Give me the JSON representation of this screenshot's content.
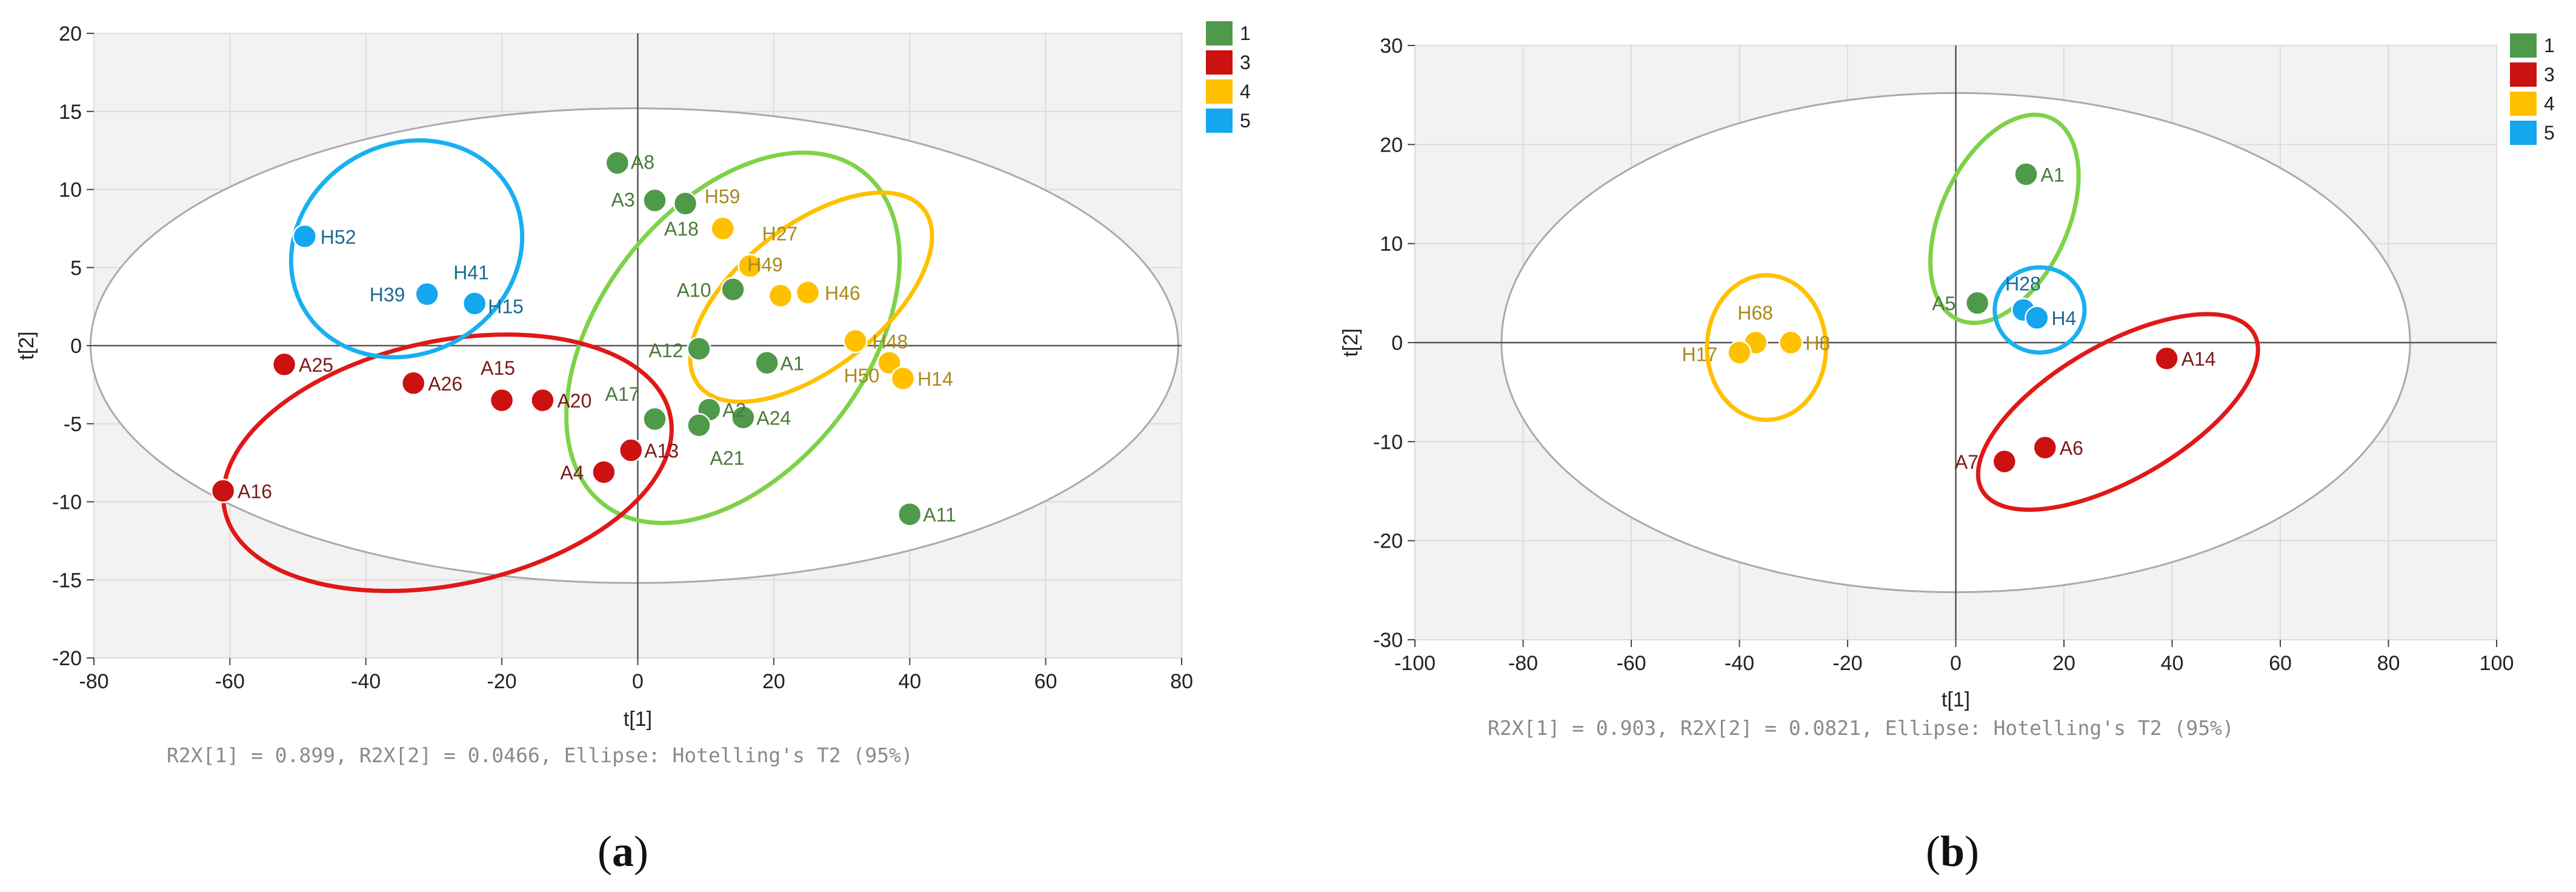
{
  "colors": {
    "g1_fill": "#4f9a4a",
    "g1_text": "#4a7a3a",
    "g1_ellipse": "#7ed24a",
    "g3_fill": "#cc1111",
    "g3_text": "#7a1a1a",
    "g3_ellipse": "#e01818",
    "g4_fill": "#ffc000",
    "g4_text": "#a88a1a",
    "g4_ellipse": "#ffc000",
    "g5_fill": "#14a6ee",
    "g5_text": "#1a6a90",
    "g5_ellipse": "#19b0f0",
    "plot_bg": "#f2f2f2",
    "grid": "#dcdcdc",
    "t2_ellipse": "#aaaaaa"
  },
  "chart_data": [
    {
      "type": "scatter",
      "panel_label": "a",
      "xlabel": "t[1]",
      "ylabel": "t[2]",
      "xlim": [
        -80,
        80
      ],
      "ylim": [
        -20,
        20
      ],
      "x_ticks": [
        -80,
        -60,
        -40,
        -20,
        0,
        20,
        40,
        60,
        80
      ],
      "y_ticks": [
        -20,
        -15,
        -10,
        -5,
        0,
        5,
        10,
        15,
        20
      ],
      "footer": "R2X[1] = 0.899, R2X[2] = 0.0466, Ellipse: Hotelling's T2 (95%)",
      "grid": true,
      "legend": {
        "position": "right",
        "entries": [
          "1",
          "3",
          "4",
          "5"
        ]
      },
      "hotelling_ellipse": {
        "center": [
          -0.5,
          0
        ],
        "rx": 80,
        "ry": 15.2
      },
      "group_ellipses": [
        {
          "group": "1",
          "center": [
            14,
            0.5
          ],
          "rx": 31,
          "ry": 8.5,
          "angle_deg": -52
        },
        {
          "group": "3",
          "center": [
            -28,
            -7.5
          ],
          "rx": 33.5,
          "ry": 7.8,
          "angle_deg": -12
        },
        {
          "group": "4",
          "center": [
            25.5,
            3.1
          ],
          "rx": 21,
          "ry": 4.6,
          "angle_deg": -38
        },
        {
          "group": "5",
          "center": [
            -34,
            6.2
          ],
          "rx": 17.5,
          "ry": 6.7,
          "angle_deg": -30
        }
      ],
      "series": [
        {
          "name": "1",
          "points": [
            {
              "label": "A8",
              "x": -3,
              "y": 11.7
            },
            {
              "label": "A3",
              "x": 2.5,
              "y": 9.3
            },
            {
              "label": "A18",
              "x": 7,
              "y": 9.1
            },
            {
              "label": "A10",
              "x": 14,
              "y": 3.6
            },
            {
              "label": "A12",
              "x": 9,
              "y": -0.2
            },
            {
              "label": "A1",
              "x": 19,
              "y": -1.1
            },
            {
              "label": "A17",
              "x": 2.5,
              "y": -4.7
            },
            {
              "label": "A2",
              "x": 10.5,
              "y": -4.1
            },
            {
              "label": "A24",
              "x": 15.5,
              "y": -4.6
            },
            {
              "label": "A21",
              "x": 9,
              "y": -5.1
            },
            {
              "label": "A11",
              "x": 40,
              "y": -10.8
            }
          ]
        },
        {
          "name": "3",
          "points": [
            {
              "label": "A25",
              "x": -52,
              "y": -1.2
            },
            {
              "label": "A26",
              "x": -33,
              "y": -2.4
            },
            {
              "label": "A15",
              "x": -20,
              "y": -3.5
            },
            {
              "label": "A20",
              "x": -14,
              "y": -3.5
            },
            {
              "label": "A13",
              "x": -1,
              "y": -6.7
            },
            {
              "label": "A4",
              "x": -5,
              "y": -8.1
            },
            {
              "label": "A16",
              "x": -61,
              "y": -9.3
            }
          ]
        },
        {
          "name": "4",
          "points": [
            {
              "label": "H59",
              "x": 12.5,
              "y": 7.5
            },
            {
              "label": "H27",
              "x": 16.5,
              "y": 5.1
            },
            {
              "label": "H49",
              "x": 21,
              "y": 3.2
            },
            {
              "label": "H46",
              "x": 25,
              "y": 3.4
            },
            {
              "label": "H48",
              "x": 32,
              "y": 0.3
            },
            {
              "label": "H50",
              "x": 37,
              "y": -1.1
            },
            {
              "label": "H14",
              "x": 39,
              "y": -2.1
            }
          ]
        },
        {
          "name": "5",
          "points": [
            {
              "label": "H52",
              "x": -49,
              "y": 7.0
            },
            {
              "label": "H39",
              "x": -31,
              "y": 3.3
            },
            {
              "label": "H41",
              "x": -24,
              "y": 2.7
            },
            {
              "label": "H15",
              "x": -24,
              "y": 2.7
            }
          ]
        }
      ]
    },
    {
      "type": "scatter",
      "panel_label": "b",
      "xlabel": "t[1]",
      "ylabel": "t[2]",
      "xlim": [
        -100,
        100
      ],
      "ylim": [
        -30,
        30
      ],
      "x_ticks": [
        -100,
        -80,
        -60,
        -40,
        -20,
        0,
        20,
        40,
        60,
        80,
        100
      ],
      "y_ticks": [
        -30,
        -20,
        -10,
        0,
        10,
        20,
        30
      ],
      "footer": "R2X[1] = 0.903, R2X[2] = 0.0821, Ellipse: Hotelling's T2 (95%)",
      "grid": true,
      "legend": {
        "position": "right",
        "entries": [
          "1",
          "3",
          "4",
          "5"
        ]
      },
      "hotelling_ellipse": {
        "center": [
          0,
          0
        ],
        "rx": 84,
        "ry": 25.2
      },
      "group_ellipses": [
        {
          "group": "1",
          "center": [
            9,
            12.5
          ],
          "rx": 20.5,
          "ry": 6.4,
          "angle_deg": -65
        },
        {
          "group": "3",
          "center": [
            30,
            -7
          ],
          "rx": 29,
          "ry": 6.8,
          "angle_deg": -30
        },
        {
          "group": "4",
          "center": [
            -35,
            -0.5
          ],
          "rx": 11,
          "ry": 7.3,
          "angle_deg": 0
        },
        {
          "group": "5",
          "center": [
            15.5,
            3.3
          ],
          "rx": 8.3,
          "ry": 4.3,
          "angle_deg": 0
        }
      ],
      "series": [
        {
          "name": "1",
          "points": [
            {
              "label": "A1",
              "x": 13,
              "y": 17
            },
            {
              "label": "A5",
              "x": 4,
              "y": 4
            }
          ]
        },
        {
          "name": "3",
          "points": [
            {
              "label": "A14",
              "x": 39,
              "y": -1.6
            },
            {
              "label": "A6",
              "x": 16.5,
              "y": -10.6
            },
            {
              "label": "A7",
              "x": 9,
              "y": -12
            }
          ]
        },
        {
          "name": "4",
          "points": [
            {
              "label": "H68",
              "x": -37,
              "y": 0
            },
            {
              "label": "H17",
              "x": -40,
              "y": -1
            },
            {
              "label": "H8",
              "x": -30.5,
              "y": 0
            }
          ]
        },
        {
          "name": "5",
          "points": [
            {
              "label": "H28",
              "x": 12.5,
              "y": 3.3
            },
            {
              "label": "H4",
              "x": 15,
              "y": 2.5
            }
          ]
        }
      ]
    }
  ]
}
